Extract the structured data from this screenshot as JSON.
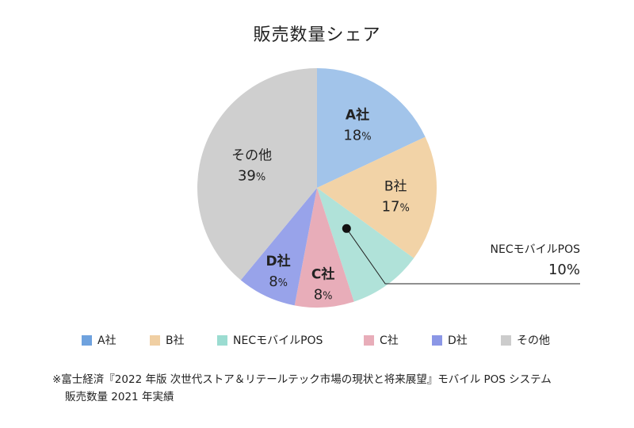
{
  "title": "販売数量シェア",
  "chart_data": {
    "type": "pie",
    "title": "販売数量シェア",
    "unit": "%",
    "slices": [
      {
        "name": "A社",
        "value": 18,
        "color": "#a2c4ea"
      },
      {
        "name": "B社",
        "value": 17,
        "color": "#f2d3a7"
      },
      {
        "name": "NECモバイルPOS",
        "value": 10,
        "color": "#b0e2d9"
      },
      {
        "name": "C社",
        "value": 8,
        "color": "#e8adb9"
      },
      {
        "name": "D社",
        "value": 8,
        "color": "#98a3ea"
      },
      {
        "name": "その他",
        "value": 39,
        "color": "#cfcfcf"
      }
    ],
    "callout": {
      "name": "NECモバイルPOS",
      "value_text": "10%"
    }
  },
  "legend": {
    "items": [
      {
        "label": "A社",
        "color": "#6fa2de"
      },
      {
        "label": "B社",
        "color": "#f0cfa3"
      },
      {
        "label": "NECモバイルPOS",
        "color": "#9bdcd1"
      },
      {
        "label": "C社",
        "color": "#e8adb9"
      },
      {
        "label": "D社",
        "color": "#8b97e6"
      },
      {
        "label": "その他",
        "color": "#cccccc"
      }
    ]
  },
  "note": {
    "line1": "※富士経済『2022 年版 次世代ストア＆リテールテック市場の現状と将来展望』モバイル POS システム",
    "line2": "販売数量 2021 年実績"
  }
}
